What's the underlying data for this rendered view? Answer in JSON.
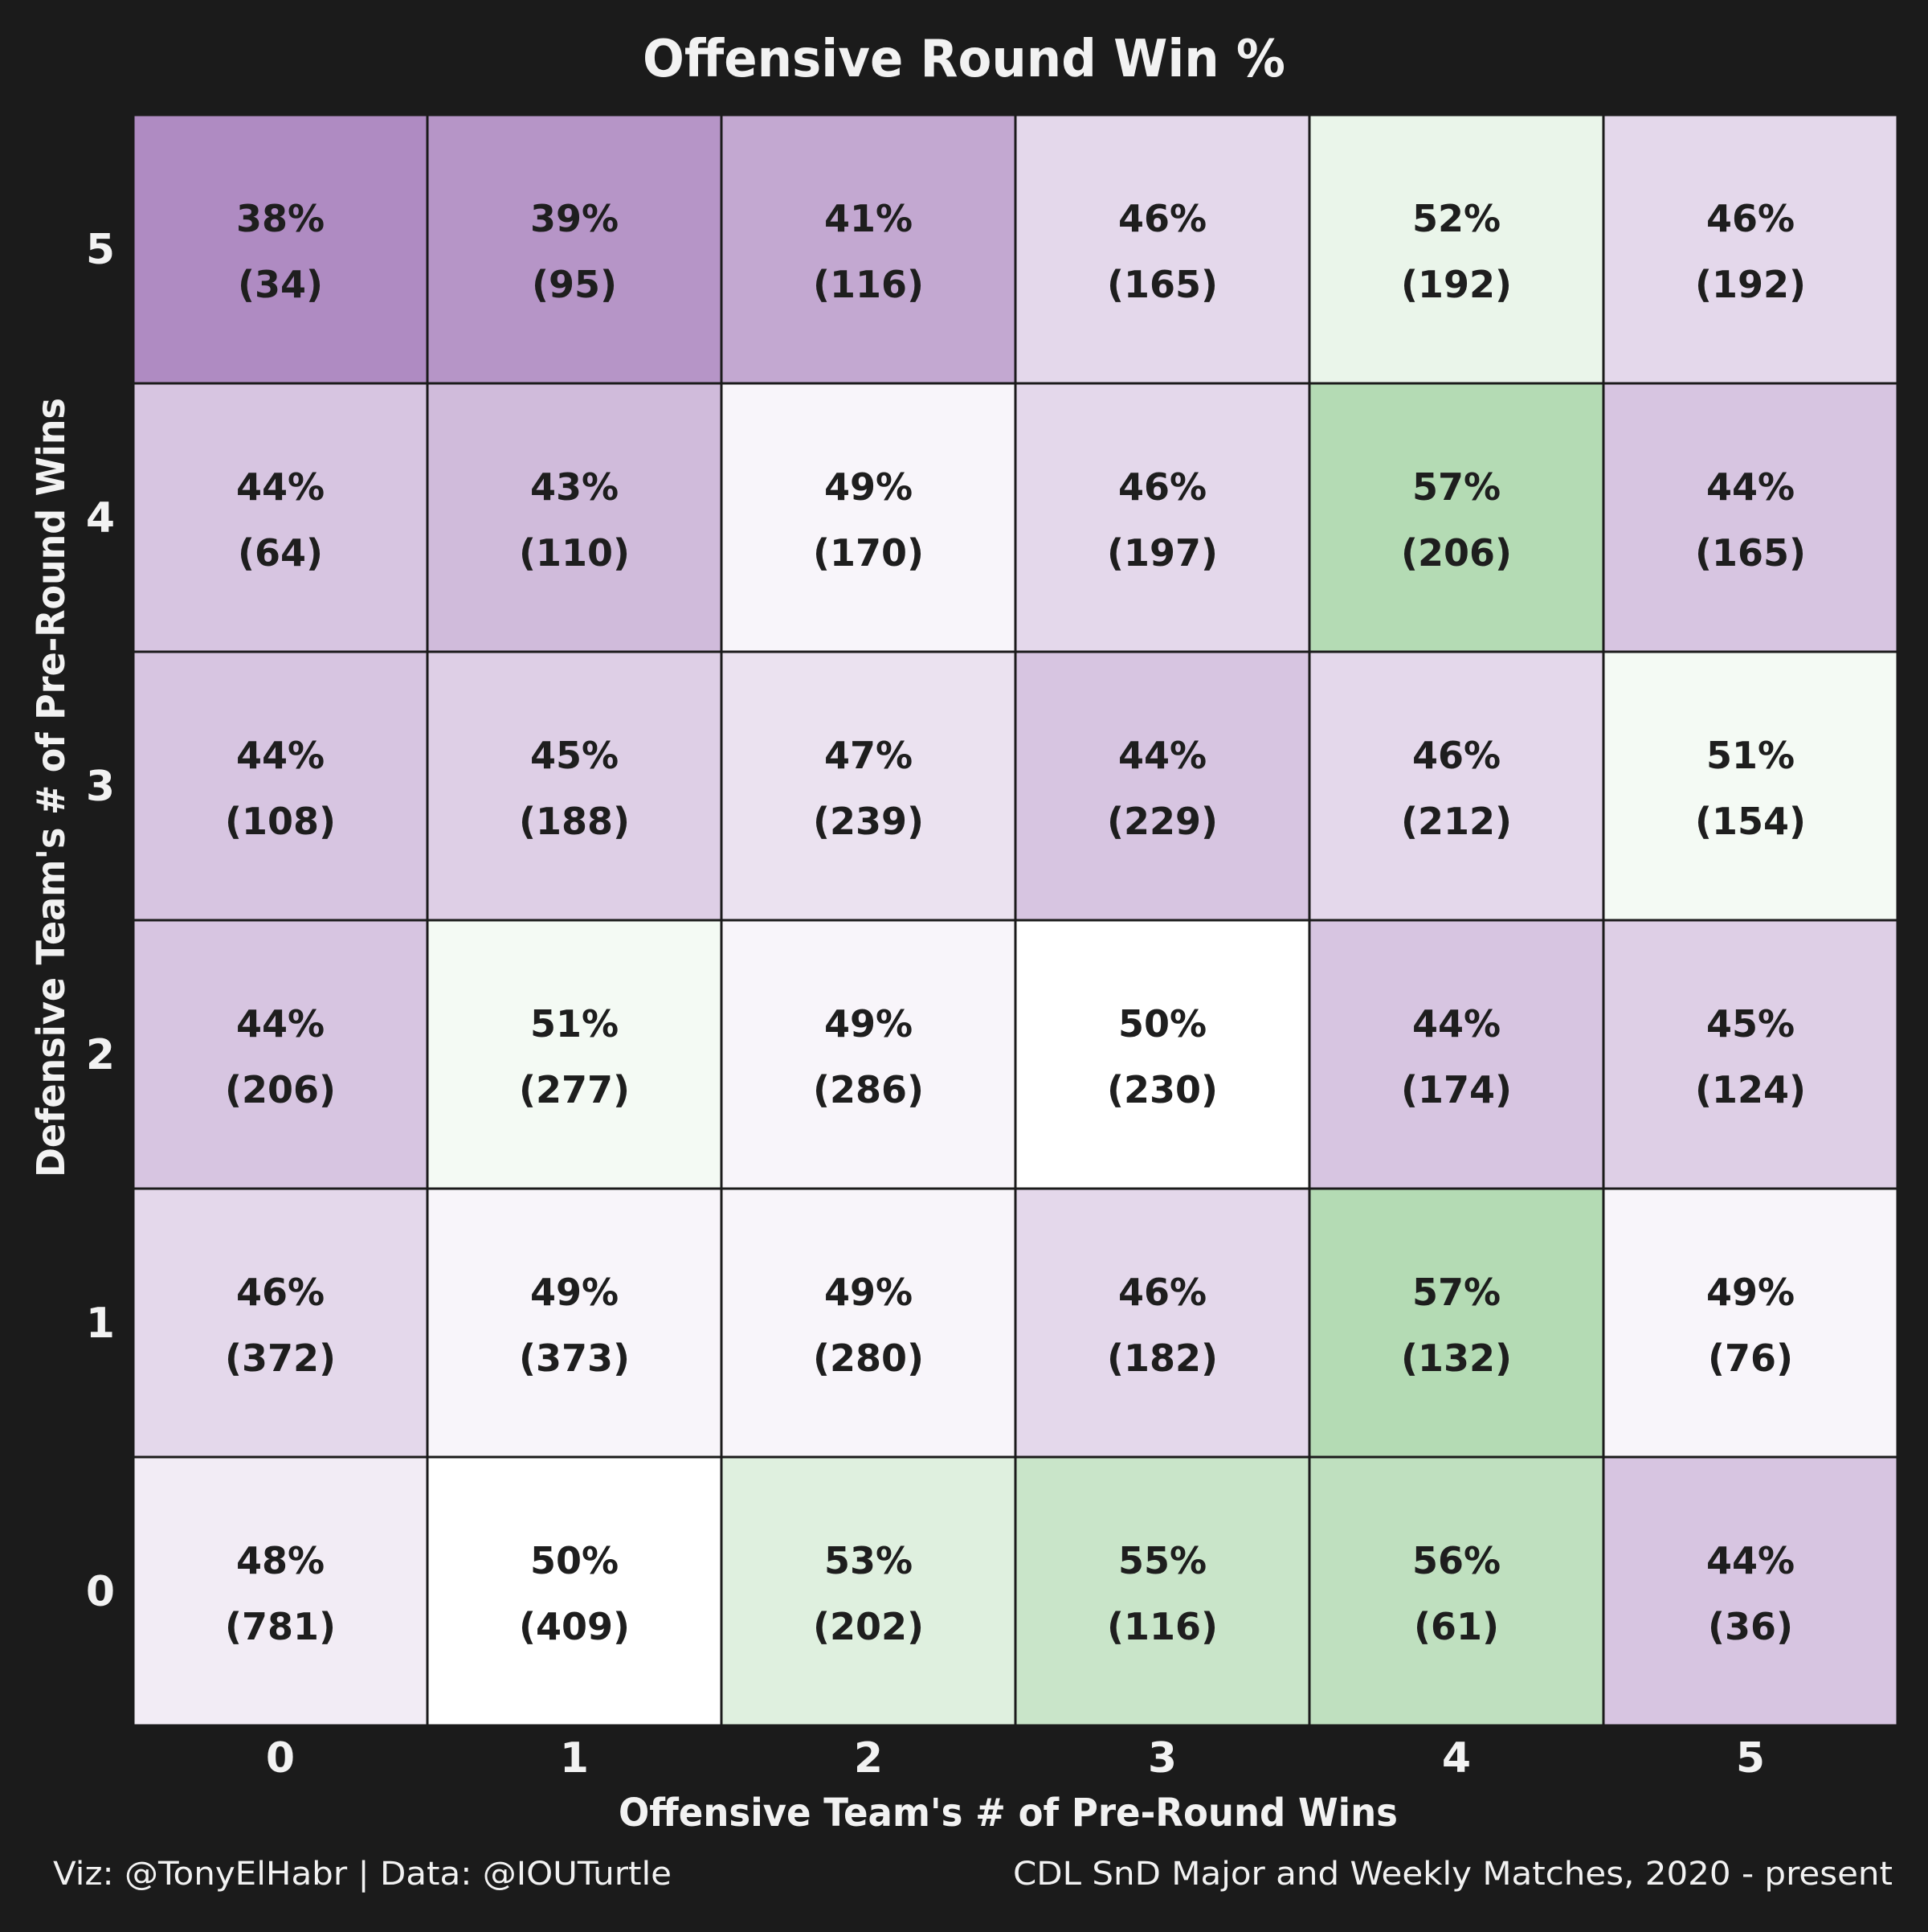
{
  "colors": {
    "background": "#1b1b1b",
    "text_light": "#f2f2f2",
    "text_dark": "#1e1e1e",
    "cell_border": "#1b1b1b",
    "low_color": "#af8bc2",
    "mid_color": "#ffffff",
    "high_color": "#b4dbb4"
  },
  "caption": {
    "left": "Viz: @TonyElHabr | Data: @IOUTurtle",
    "right": "CDL SnD Major and Weekly Matches, 2020 - present"
  },
  "chart_data": {
    "type": "heatmap",
    "title": "Offensive Round Win %",
    "xlabel": "Offensive Team's # of Pre-Round Wins",
    "ylabel": "Defensive Team's # of Pre-Round Wins",
    "x_categories": [
      "0",
      "1",
      "2",
      "3",
      "4",
      "5"
    ],
    "y_categories": [
      "0",
      "1",
      "2",
      "3",
      "4",
      "5"
    ],
    "color_scale": {
      "min": 38,
      "mid": 50,
      "max": 57
    },
    "cells": [
      {
        "x": 0,
        "y": 5,
        "pct": 38,
        "pct_label": "38%",
        "n_label": "(34)"
      },
      {
        "x": 1,
        "y": 5,
        "pct": 39,
        "pct_label": "39%",
        "n_label": "(95)"
      },
      {
        "x": 2,
        "y": 5,
        "pct": 41,
        "pct_label": "41%",
        "n_label": "(116)"
      },
      {
        "x": 3,
        "y": 5,
        "pct": 46,
        "pct_label": "46%",
        "n_label": "(165)"
      },
      {
        "x": 4,
        "y": 5,
        "pct": 52,
        "pct_label": "52%",
        "n_label": "(192)"
      },
      {
        "x": 5,
        "y": 5,
        "pct": 46,
        "pct_label": "46%",
        "n_label": "(192)"
      },
      {
        "x": 0,
        "y": 4,
        "pct": 44,
        "pct_label": "44%",
        "n_label": "(64)"
      },
      {
        "x": 1,
        "y": 4,
        "pct": 43,
        "pct_label": "43%",
        "n_label": "(110)"
      },
      {
        "x": 2,
        "y": 4,
        "pct": 49,
        "pct_label": "49%",
        "n_label": "(170)"
      },
      {
        "x": 3,
        "y": 4,
        "pct": 46,
        "pct_label": "46%",
        "n_label": "(197)"
      },
      {
        "x": 4,
        "y": 4,
        "pct": 57,
        "pct_label": "57%",
        "n_label": "(206)"
      },
      {
        "x": 5,
        "y": 4,
        "pct": 44,
        "pct_label": "44%",
        "n_label": "(165)"
      },
      {
        "x": 0,
        "y": 3,
        "pct": 44,
        "pct_label": "44%",
        "n_label": "(108)"
      },
      {
        "x": 1,
        "y": 3,
        "pct": 45,
        "pct_label": "45%",
        "n_label": "(188)"
      },
      {
        "x": 2,
        "y": 3,
        "pct": 47,
        "pct_label": "47%",
        "n_label": "(239)"
      },
      {
        "x": 3,
        "y": 3,
        "pct": 44,
        "pct_label": "44%",
        "n_label": "(229)"
      },
      {
        "x": 4,
        "y": 3,
        "pct": 46,
        "pct_label": "46%",
        "n_label": "(212)"
      },
      {
        "x": 5,
        "y": 3,
        "pct": 51,
        "pct_label": "51%",
        "n_label": "(154)"
      },
      {
        "x": 0,
        "y": 2,
        "pct": 44,
        "pct_label": "44%",
        "n_label": "(206)"
      },
      {
        "x": 1,
        "y": 2,
        "pct": 51,
        "pct_label": "51%",
        "n_label": "(277)"
      },
      {
        "x": 2,
        "y": 2,
        "pct": 49,
        "pct_label": "49%",
        "n_label": "(286)"
      },
      {
        "x": 3,
        "y": 2,
        "pct": 50,
        "pct_label": "50%",
        "n_label": "(230)"
      },
      {
        "x": 4,
        "y": 2,
        "pct": 44,
        "pct_label": "44%",
        "n_label": "(174)"
      },
      {
        "x": 5,
        "y": 2,
        "pct": 45,
        "pct_label": "45%",
        "n_label": "(124)"
      },
      {
        "x": 0,
        "y": 1,
        "pct": 46,
        "pct_label": "46%",
        "n_label": "(372)"
      },
      {
        "x": 1,
        "y": 1,
        "pct": 49,
        "pct_label": "49%",
        "n_label": "(373)"
      },
      {
        "x": 2,
        "y": 1,
        "pct": 49,
        "pct_label": "49%",
        "n_label": "(280)"
      },
      {
        "x": 3,
        "y": 1,
        "pct": 46,
        "pct_label": "46%",
        "n_label": "(182)"
      },
      {
        "x": 4,
        "y": 1,
        "pct": 57,
        "pct_label": "57%",
        "n_label": "(132)"
      },
      {
        "x": 5,
        "y": 1,
        "pct": 49,
        "pct_label": "49%",
        "n_label": "(76)"
      },
      {
        "x": 0,
        "y": 0,
        "pct": 48,
        "pct_label": "48%",
        "n_label": "(781)"
      },
      {
        "x": 1,
        "y": 0,
        "pct": 50,
        "pct_label": "50%",
        "n_label": "(409)"
      },
      {
        "x": 2,
        "y": 0,
        "pct": 53,
        "pct_label": "53%",
        "n_label": "(202)"
      },
      {
        "x": 3,
        "y": 0,
        "pct": 55,
        "pct_label": "55%",
        "n_label": "(116)"
      },
      {
        "x": 4,
        "y": 0,
        "pct": 56,
        "pct_label": "56%",
        "n_label": "(61)"
      },
      {
        "x": 5,
        "y": 0,
        "pct": 44,
        "pct_label": "44%",
        "n_label": "(36)"
      }
    ]
  }
}
